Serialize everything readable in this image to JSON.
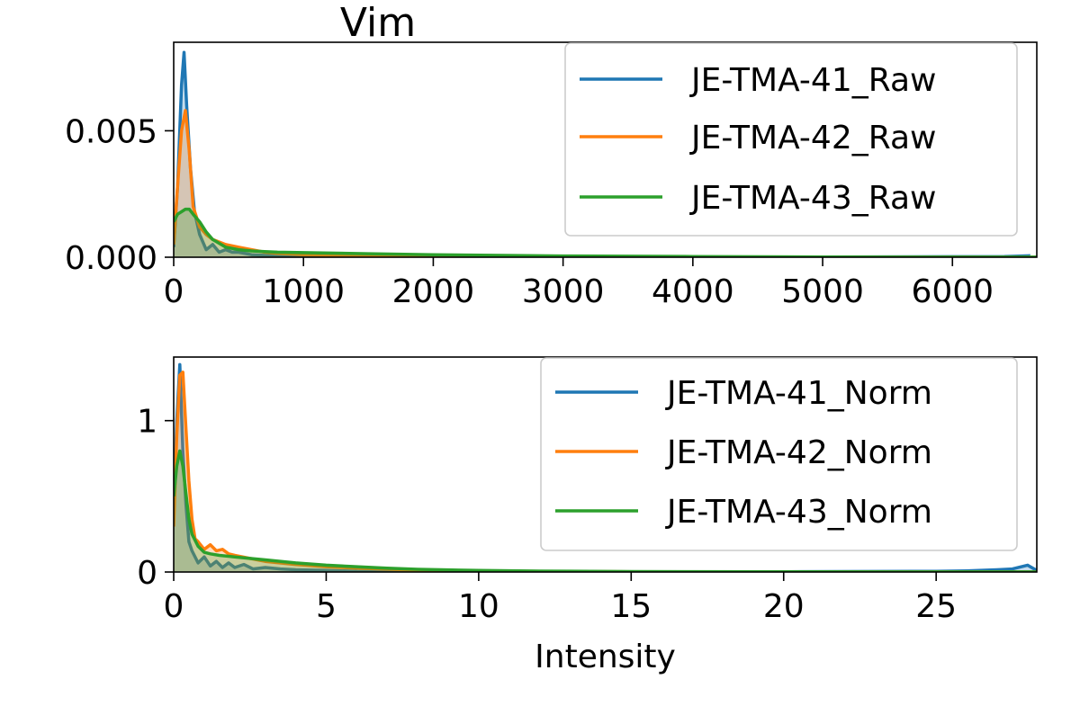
{
  "chart_data": [
    {
      "type": "line",
      "title": "Vim",
      "xlabel": "",
      "ylabel": "",
      "xlim": [
        0,
        6650
      ],
      "ylim": [
        0,
        0.0085
      ],
      "xticks": [
        0,
        1000,
        2000,
        3000,
        4000,
        5000,
        6000
      ],
      "xtick_labels": [
        "0",
        "1000",
        "2000",
        "3000",
        "4000",
        "5000",
        "6000"
      ],
      "yticks": [
        0.0,
        0.005
      ],
      "ytick_labels": [
        "0.000",
        "0.005"
      ],
      "grid": false,
      "legend": "top-right",
      "series": [
        {
          "name": "JE-TMA-41_Raw",
          "color": "#1f77b4",
          "x": [
            0,
            30,
            60,
            80,
            100,
            130,
            160,
            200,
            250,
            300,
            350,
            400,
            450,
            500,
            600,
            800,
            1000,
            1500,
            2000,
            3000,
            4000,
            5000,
            6000,
            6400,
            6600
          ],
          "y": [
            0.0004,
            0.0028,
            0.0068,
            0.0081,
            0.006,
            0.0035,
            0.0018,
            0.0009,
            0.0003,
            0.0005,
            0.0002,
            0.0003,
            0.0002,
            0.0002,
            0.0001,
            5e-05,
            3e-05,
            2e-05,
            1e-05,
            5e-06,
            5e-06,
            1e-05,
            2e-05,
            3e-05,
            6e-05
          ]
        },
        {
          "name": "JE-TMA-42_Raw",
          "color": "#ff7f0e",
          "x": [
            0,
            30,
            60,
            90,
            120,
            150,
            200,
            250,
            300,
            400,
            500,
            600,
            700,
            800,
            1000,
            1500,
            2000,
            3000,
            4000,
            5000,
            6000,
            6650
          ],
          "y": [
            0.0005,
            0.0028,
            0.005,
            0.0058,
            0.0042,
            0.002,
            0.0012,
            0.0009,
            0.0007,
            0.0005,
            0.0004,
            0.0003,
            0.0002,
            0.00015,
            0.0001,
            5e-05,
            3e-05,
            1e-05,
            5e-06,
            3e-06,
            2e-06,
            1e-06
          ]
        },
        {
          "name": "JE-TMA-43_Raw",
          "color": "#2ca02c",
          "x": [
            0,
            30,
            60,
            90,
            120,
            150,
            200,
            250,
            300,
            400,
            500,
            600,
            700,
            800,
            1000,
            1500,
            2000,
            3000,
            4000,
            5000,
            6000,
            6650
          ],
          "y": [
            0.0014,
            0.0017,
            0.0018,
            0.0019,
            0.0019,
            0.0017,
            0.0014,
            0.001,
            0.0007,
            0.0004,
            0.0003,
            0.00025,
            0.00022,
            0.0002,
            0.00018,
            0.00014,
            0.0001,
            5e-05,
            3e-05,
            1e-05,
            5e-06,
            3e-06
          ]
        }
      ]
    },
    {
      "type": "line",
      "title": "",
      "xlabel": "Intensity",
      "ylabel": "",
      "xlim": [
        0,
        28.3
      ],
      "ylim": [
        0,
        1.42
      ],
      "xticks": [
        0,
        5,
        10,
        15,
        20,
        25
      ],
      "xtick_labels": [
        "0",
        "5",
        "10",
        "15",
        "20",
        "25"
      ],
      "yticks": [
        0,
        1
      ],
      "ytick_labels": [
        "0",
        "1"
      ],
      "grid": false,
      "legend": "top-right",
      "series": [
        {
          "name": "JE-TMA-41_Norm",
          "color": "#1f77b4",
          "x": [
            0,
            0.1,
            0.2,
            0.3,
            0.4,
            0.5,
            0.6,
            0.8,
            1.0,
            1.2,
            1.4,
            1.6,
            1.8,
            2.0,
            2.3,
            2.6,
            3.0,
            3.5,
            4.0,
            5.0,
            6.0,
            8.0,
            10.0,
            15.0,
            20.0,
            25.0,
            26.0,
            27.0,
            27.5,
            28.0,
            28.3
          ],
          "y": [
            0.4,
            1.0,
            1.37,
            0.8,
            0.45,
            0.2,
            0.14,
            0.06,
            0.1,
            0.04,
            0.07,
            0.03,
            0.06,
            0.03,
            0.05,
            0.02,
            0.03,
            0.02,
            0.015,
            0.01,
            0.005,
            0.003,
            0.002,
            0.001,
            0.002,
            0.005,
            0.008,
            0.015,
            0.02,
            0.045,
            0.01
          ]
        },
        {
          "name": "JE-TMA-42_Norm",
          "color": "#ff7f0e",
          "x": [
            0,
            0.1,
            0.2,
            0.3,
            0.4,
            0.5,
            0.6,
            0.7,
            0.8,
            1.0,
            1.2,
            1.4,
            1.6,
            1.8,
            2.0,
            2.5,
            3.0,
            4.0,
            5.0,
            6.0,
            8.0,
            10.0,
            15.0,
            20.0,
            25.0,
            28.3
          ],
          "y": [
            0.3,
            0.9,
            1.3,
            1.32,
            0.95,
            0.6,
            0.35,
            0.22,
            0.2,
            0.15,
            0.18,
            0.14,
            0.15,
            0.12,
            0.11,
            0.09,
            0.07,
            0.05,
            0.035,
            0.025,
            0.012,
            0.006,
            0.002,
            0.001,
            0.0005,
            0.0003
          ]
        },
        {
          "name": "JE-TMA-43_Norm",
          "color": "#2ca02c",
          "x": [
            0,
            0.1,
            0.2,
            0.3,
            0.4,
            0.5,
            0.6,
            0.8,
            1.0,
            1.2,
            1.5,
            2.0,
            2.5,
            3.0,
            4.0,
            5.0,
            6.0,
            7.0,
            8.0,
            10.0,
            12.0,
            15.0,
            20.0,
            25.0,
            28.3
          ],
          "y": [
            0.5,
            0.7,
            0.8,
            0.7,
            0.52,
            0.35,
            0.25,
            0.17,
            0.13,
            0.12,
            0.11,
            0.1,
            0.09,
            0.08,
            0.06,
            0.045,
            0.035,
            0.025,
            0.018,
            0.01,
            0.006,
            0.003,
            0.001,
            0.0005,
            0.0003
          ]
        }
      ]
    }
  ]
}
